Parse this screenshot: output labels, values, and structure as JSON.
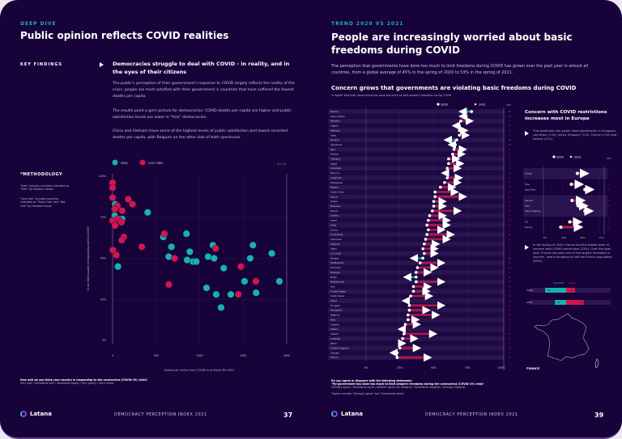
{
  "left_page": {
    "kicker": "DEEP DIVE",
    "title": "Public opinion reflects COVID realities",
    "key_findings_label": "KEY FINDINGS",
    "headline": "Democracies struggle to deal with COVID - in reality, and in the eyes of their citizens",
    "paragraphs": [
      "The public's perception of their government's response to COVID largely reflects the reality of the crisis: people are most satisfied with their government in countries that have suffered the fewest deaths per capita.",
      "The results paint a grim picture for democracies: COVID deaths per capita are higher and public satisfaction levels are lower in \"free\" democracies.",
      "China and Vietnam have some of the highest levels of public satisfaction and lowest recorded deaths per capita, with Belgium on the other side of both spectrums."
    ],
    "methodology_title": "*METHODOLOGY",
    "methodology_notes": [
      "\"Free\" includes countries classified as \"Free\" by Freedom House",
      "\"Less free\" includes countries classified as \"Partly Free\" and \"Not Free\" by Freedom House"
    ],
    "question": "How well do you think your country is responding to the coronavirus (COVID-19) crisis?",
    "answers": "Very well / Somewhat well / Somewhat poorly / Very poorly / Don't know",
    "footer_brand": "Latana",
    "footer_title": "DEMOCRACY PERCEPTION INDEX 2021",
    "page_number": "37"
  },
  "right_page": {
    "kicker": "TREND 2020 VS 2021",
    "title": "People are increasingly worried about basic freedoms during COVID",
    "intro": "The perception that governments have done too much to limit freedoms during COVID has grown over the past year in almost all countries, from a global average of 45% in the spring of 2020 to 53% in the spring of 2021.",
    "chart_title": "Concern grows that governments are violating basic freedoms during COVID",
    "chart_subtitle": "% agree* that their government has done too much to limit people's freedoms during COVID",
    "side_title": "Concern with COVID restrictions increases most in Europe",
    "side_text_1": "This sentiment has grown most significantly in European countries (+10), led by Hungary (+23), France (+22) and Ireland (+21).",
    "side_text_2": "In the spring of 2020, France had the lowest level of concern with COVID restrictions (23%). Over the past year, France has seen one of the largest increases in concern, nearly doubling to half the French population (45%).",
    "map_label": "FRANCE",
    "question": "Do you agree or disagree with the following statement:",
    "statement": "\"My government has done too much to limit people's freedoms during the coronavirus (COVID-19) crisis\"",
    "answers": "Strongly agree / Somewhat agree / Neither agree nor disagree / Somewhat disagree / Strongly disagree",
    "footnote": "*Agree includes \"Strongly agree\" and \"Somewhat agree\"",
    "footer_brand": "Latana",
    "footer_title": "DEMOCRACY PERCEPTION INDEX 2021",
    "page_number": "39"
  },
  "colors": {
    "background": "#17023a",
    "free": "#16b3ad",
    "less_free": "#d0174f",
    "increase": "#b3174c",
    "decrease": "#138f8e",
    "accent": "#16b3b0"
  },
  "chart_data": [
    {
      "type": "scatter",
      "legend": [
        "FREE",
        "LESS FREE"
      ],
      "legend_placement": "top",
      "n_label": "N = 53",
      "xlabel": "Deaths per million from COVID as of March 8th 2021",
      "ylabel": "% say their country is responding well to COVID",
      "xlim": [
        0,
        2000
      ],
      "ylim": [
        0,
        100
      ],
      "xticks": [
        "0",
        "500",
        "1000",
        "1500",
        "2000"
      ],
      "yticks": [
        "0%",
        "25%",
        "50%",
        "75%",
        "100%"
      ],
      "grid": true,
      "series": [
        {
          "name": "FREE",
          "points": [
            [
              0,
              87
            ],
            [
              31,
              83
            ],
            [
              25,
              76
            ],
            [
              109,
              74
            ],
            [
              403,
              78
            ],
            [
              583,
              63
            ],
            [
              676,
              57
            ],
            [
              645,
              51
            ],
            [
              849,
              65
            ],
            [
              887,
              54
            ],
            [
              856,
              49
            ],
            [
              924,
              48
            ],
            [
              961,
              48
            ],
            [
              1097,
              51
            ],
            [
              1153,
              58
            ],
            [
              1166,
              50
            ],
            [
              1277,
              44
            ],
            [
              1079,
              32
            ],
            [
              1190,
              28
            ],
            [
              1358,
              28
            ],
            [
              1246,
              20
            ],
            [
              1516,
              36
            ],
            [
              1612,
              58
            ],
            [
              1581,
              50
            ],
            [
              1649,
              29
            ],
            [
              1829,
              53
            ],
            [
              1916,
              36
            ],
            [
              62,
              45
            ]
          ]
        },
        {
          "name": "LESS FREE",
          "points": [
            [
              0,
              96
            ],
            [
              0,
              93
            ],
            [
              0,
              87
            ],
            [
              56,
              82
            ],
            [
              25,
              80
            ],
            [
              109,
              79
            ],
            [
              62,
              74
            ],
            [
              102,
              72
            ],
            [
              0,
              73
            ],
            [
              28,
              70
            ],
            [
              130,
              63
            ],
            [
              105,
              61
            ],
            [
              180,
              86
            ],
            [
              229,
              83
            ],
            [
              335,
              57
            ],
            [
              3,
              55
            ],
            [
              43,
              52
            ],
            [
              595,
              65
            ],
            [
              713,
              50
            ],
            [
              645,
              34
            ],
            [
              1184,
              56
            ],
            [
              1445,
              28
            ],
            [
              1473,
              45
            ],
            [
              1646,
              36
            ]
          ]
        }
      ]
    },
    {
      "type": "dumbbell",
      "legend": [
        "2020",
        "2021"
      ],
      "diff_header": "DIFF",
      "xlim": [
        0,
        100
      ],
      "xticks": [
        "0%",
        "25%",
        "50%",
        "75%",
        "100%"
      ],
      "rows": [
        {
          "label": "Mexico",
          "v2020": 78,
          "v2021": 72,
          "diff": "-6"
        },
        {
          "label": "Saudi Arabia",
          "v2020": 74,
          "v2021": 72,
          "diff": "-2"
        },
        {
          "label": "Pakistan",
          "v2020": 70,
          "v2021": 76,
          "diff": "6"
        },
        {
          "label": "Algeria",
          "v2020": 69,
          "v2021": 67,
          "diff": "-2"
        },
        {
          "label": "Malaysia",
          "v2020": 69,
          "v2021": 72,
          "diff": "3"
        },
        {
          "label": "India",
          "v2020": 69,
          "v2021": 73,
          "diff": "4"
        },
        {
          "label": "Ukraine",
          "v2020": 67,
          "v2021": 61,
          "diff": "-6"
        },
        {
          "label": "Venezuela",
          "v2020": 66,
          "v2021": 64,
          "diff": "-2"
        },
        {
          "label": "Peru",
          "v2020": 65,
          "v2021": 71,
          "diff": "6"
        },
        {
          "label": "Greece",
          "v2020": 64,
          "v2021": 70,
          "diff": "6"
        },
        {
          "label": "Thailand",
          "v2020": 61,
          "v2021": 66,
          "diff": "5"
        },
        {
          "label": "Egypt",
          "v2020": 61,
          "v2021": 69,
          "diff": "8"
        },
        {
          "label": "Colombia",
          "v2020": 60,
          "v2021": 67,
          "diff": "7"
        },
        {
          "label": "Morocco",
          "v2020": 60,
          "v2021": 59,
          "diff": "-1"
        },
        {
          "label": "Argentina",
          "v2020": 60,
          "v2021": 68,
          "diff": "8"
        },
        {
          "label": "Philippines",
          "v2020": 58,
          "v2021": 67,
          "diff": "9"
        },
        {
          "label": "Nigeria",
          "v2020": 55,
          "v2021": 63,
          "diff": "8"
        },
        {
          "label": "South Africa",
          "v2020": 51,
          "v2021": 65,
          "diff": "14"
        },
        {
          "label": "Kenya",
          "v2020": 51,
          "v2021": 71,
          "diff": "20"
        },
        {
          "label": "Russia",
          "v2020": 50,
          "v2021": 56,
          "diff": "6"
        },
        {
          "label": "Romania",
          "v2020": 50,
          "v2021": 56,
          "diff": "6"
        },
        {
          "label": "Poland",
          "v2020": 49,
          "v2021": 67,
          "diff": "18"
        },
        {
          "label": "Austria",
          "v2020": 47,
          "v2021": 56,
          "diff": "9"
        },
        {
          "label": "Israel",
          "v2020": 46,
          "v2021": 59,
          "diff": "13"
        },
        {
          "label": "Chile",
          "v2020": 45,
          "v2021": 59,
          "diff": "14"
        },
        {
          "label": "Turkey",
          "v2020": 46,
          "v2021": 55,
          "diff": "9"
        },
        {
          "label": "Hong Kong",
          "v2020": 45,
          "v2021": 62,
          "diff": "17"
        },
        {
          "label": "Indonesia",
          "v2020": 44,
          "v2021": 59,
          "diff": "15"
        },
        {
          "label": "Vietnam",
          "v2020": 43,
          "v2021": 51,
          "diff": "8"
        },
        {
          "label": "Spain",
          "v2020": 42,
          "v2021": 50,
          "diff": "8"
        },
        {
          "label": "Sri Lanka",
          "v2020": 43,
          "v2021": 50,
          "diff": "7"
        },
        {
          "label": "Norway",
          "v2020": 42,
          "v2021": 36,
          "diff": "-6"
        },
        {
          "label": "Switzerland",
          "v2020": 40,
          "v2021": 55,
          "diff": "15"
        },
        {
          "label": "Denmark",
          "v2020": 38,
          "v2021": 50,
          "diff": "12"
        },
        {
          "label": "Portugal",
          "v2020": 37,
          "v2021": 45,
          "diff": "8"
        },
        {
          "label": "Brazil",
          "v2020": 37,
          "v2021": 31,
          "diff": "-6"
        },
        {
          "label": "Netherlands",
          "v2020": 37,
          "v2021": 55,
          "diff": "18"
        },
        {
          "label": "Iran",
          "v2020": 35,
          "v2021": 45,
          "diff": "10"
        },
        {
          "label": "United States",
          "v2020": 35,
          "v2021": 44,
          "diff": "9"
        },
        {
          "label": "South Korea",
          "v2020": 33,
          "v2021": 46,
          "diff": "13"
        },
        {
          "label": "China",
          "v2020": 31,
          "v2021": 30,
          "diff": "-1"
        },
        {
          "label": "Hungary",
          "v2020": 32,
          "v2021": 55,
          "diff": "23"
        },
        {
          "label": "Singapore",
          "v2020": 32,
          "v2021": 44,
          "diff": "12"
        },
        {
          "label": "Belgium",
          "v2020": 31,
          "v2021": 51,
          "diff": "20"
        },
        {
          "label": "Italy",
          "v2020": 31,
          "v2021": 36,
          "diff": "5"
        },
        {
          "label": "Canada",
          "v2020": 29,
          "v2021": 37,
          "diff": "8"
        },
        {
          "label": "Taiwan",
          "v2020": 28,
          "v2021": 27,
          "diff": "-1"
        },
        {
          "label": "Ireland",
          "v2020": 28,
          "v2021": 49,
          "diff": "21"
        },
        {
          "label": "Australia",
          "v2020": 27,
          "v2021": 35,
          "diff": "8"
        },
        {
          "label": "Japan",
          "v2020": 25,
          "v2021": 26,
          "diff": "1"
        },
        {
          "label": "United Kingdom",
          "v2020": 25,
          "v2021": 37,
          "diff": "12"
        },
        {
          "label": "Sweden",
          "v2020": 23,
          "v2021": 21,
          "diff": "-2"
        },
        {
          "label": "France",
          "v2020": 23,
          "v2021": 45,
          "diff": "22"
        }
      ]
    },
    {
      "type": "dumbbell",
      "legend": [
        "2020",
        "2021"
      ],
      "diff_header": "DIFF",
      "xlim": [
        0,
        75
      ],
      "xticks": [
        "0%",
        "25%",
        "50%",
        "75%"
      ],
      "groups": [
        [
          {
            "label": "Global",
            "v2020": 45,
            "v2021": 53,
            "diff": "8"
          }
        ],
        [
          {
            "label": "Free",
            "v2020": 37,
            "v2021": 46,
            "diff": "9"
          },
          {
            "label": "Less Free",
            "v2020": 55,
            "v2021": 60,
            "diff": "5"
          }
        ],
        [
          {
            "label": "Europe",
            "v2020": 38,
            "v2021": 48,
            "diff": "10"
          },
          {
            "label": "Asia",
            "v2020": 46,
            "v2021": 52,
            "diff": "6"
          },
          {
            "label": "Latin America",
            "v2020": 55,
            "v2021": 59,
            "diff": "4"
          }
        ],
        [
          {
            "label": "US",
            "v2020": 35,
            "v2021": 44,
            "diff": "9"
          },
          {
            "label": "France",
            "v2020": 23,
            "v2021": 45,
            "diff": "22"
          }
        ]
      ]
    },
    {
      "type": "bar",
      "stacked": true,
      "categories": [
        "2020",
        "2021"
      ],
      "series": [
        {
          "name": "DISAGREE",
          "values": [
            54,
            29
          ]
        },
        {
          "name": "AGREE",
          "values": [
            23,
            45
          ]
        }
      ]
    }
  ]
}
